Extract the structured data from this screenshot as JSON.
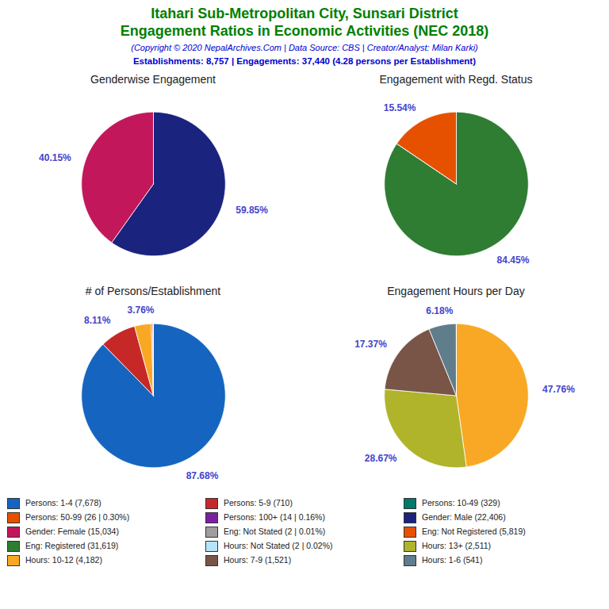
{
  "title": [
    "Itahari Sub-Metropolitan City, Sunsari District",
    "Engagement Ratios in Economic Activities (NEC 2018)"
  ],
  "subtitle": "(Copyright © 2020 NepalArchives.Com | Data Source: CBS | Creator/Analyst: Milan Karki)",
  "annotations": [
    "Establishments: 8,757 | Engagements: 37,440 (4.28 persons per Establishment)"
  ],
  "legend": "bottom",
  "series": [
    {
      "name": "Persons: 1-4 (7,678)",
      "color": "#1565c0"
    },
    {
      "name": "Persons: 5-9 (710)",
      "color": "#c62828"
    },
    {
      "name": "Persons: 10-49 (329)",
      "color": "#00796b"
    },
    {
      "name": "Persons: 50-99 (26 | 0.30%)",
      "color": "#e65100"
    },
    {
      "name": "Persons: 100+ (14 | 0.16%)",
      "color": "#7b1fa2"
    },
    {
      "name": "Gender: Male (22,406)",
      "color": "#1a237e"
    },
    {
      "name": "Gender: Female (15,034)",
      "color": "#c2185b"
    },
    {
      "name": "Eng: Not Stated (2 | 0.01%)",
      "color": "#9e9e9e"
    },
    {
      "name": "Eng: Not Registered (5,819)",
      "color": "#e65100"
    },
    {
      "name": "Eng: Registered (31,619)",
      "color": "#2e7d32"
    },
    {
      "name": "Hours: Not Stated (2 | 0.02%)",
      "color": "#b3e5fc"
    },
    {
      "name": "Hours: 13+ (2,511)",
      "color": "#afb42b"
    },
    {
      "name": "Hours: 10-12 (4,182)",
      "color": "#f9a825"
    },
    {
      "name": "Hours: 7-9 (1,521)",
      "color": "#795548"
    },
    {
      "name": "Hours: 1-6 (541)",
      "color": "#607d8b"
    }
  ],
  "chart_data": [
    {
      "type": "pie",
      "title": "Genderwise Engagement",
      "values": [
        59.85,
        40.15
      ],
      "colors": [
        "#1a237e",
        "#c2185b"
      ],
      "value_labels": [
        "59.85%",
        "40.15%"
      ],
      "data_labels": true
    },
    {
      "type": "pie",
      "title": "Engagement with Regd. Status",
      "values": [
        84.45,
        0.01,
        15.54
      ],
      "colors": [
        "#2e7d32",
        "#1b5e20",
        "#e65100"
      ],
      "value_labels": [
        "84.45%",
        null,
        "15.54%"
      ],
      "data_labels": true
    },
    {
      "type": "pie",
      "title": "# of Persons/Establishment",
      "values": [
        87.68,
        8.11,
        3.76,
        0.3,
        0.16,
        0.01
      ],
      "colors": [
        "#1565c0",
        "#c62828",
        "#f9a825",
        "#e65100",
        "#7b1fa2",
        "#9e9e9e"
      ],
      "value_labels": [
        "87.68%",
        "8.11%",
        "3.76%",
        null,
        null,
        null
      ],
      "data_labels": true
    },
    {
      "type": "pie",
      "title": "Engagement Hours per Day",
      "values": [
        47.76,
        28.67,
        17.37,
        6.18,
        0.02
      ],
      "colors": [
        "#f9a825",
        "#afb42b",
        "#795548",
        "#607d8b",
        "#b3e5fc"
      ],
      "value_labels": [
        "47.76%",
        "28.67%",
        "17.37%",
        "6.18%",
        null
      ],
      "data_labels": true
    }
  ]
}
